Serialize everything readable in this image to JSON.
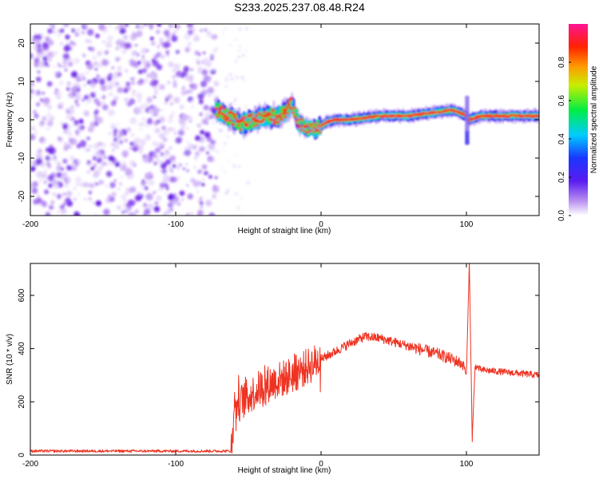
{
  "title": "S233.2025.237.08.48.R24",
  "colors": {
    "snr_line": "#ee3322",
    "background": "#ffffff",
    "noise_purple": "#7a2cf0"
  },
  "chart_data": [
    {
      "type": "heatmap",
      "name": "spectrogram",
      "xlabel": "Height of straight line (km)",
      "ylabel": "Frequency (Hz)",
      "xlim": [
        -200,
        150
      ],
      "ylim": [
        -25,
        25
      ],
      "xticks": [
        -200,
        -100,
        0,
        100
      ],
      "yticks": [
        -20,
        -10,
        0,
        10,
        20
      ],
      "noise_region_x": [
        -200,
        -72
      ],
      "signal_trace": {
        "x": [
          -72,
          -65,
          -55,
          -45,
          -35,
          -30,
          -25,
          -20,
          -15,
          -10,
          -5,
          0,
          5,
          10,
          20,
          30,
          40,
          50,
          60,
          70,
          80,
          90,
          95,
          100,
          102,
          110,
          120,
          130,
          140,
          150
        ],
        "freq": [
          2.5,
          1,
          -1,
          0,
          1,
          0.5,
          2,
          4,
          -1,
          -2,
          -2.5,
          -1.5,
          -0.5,
          0,
          0,
          0.5,
          1,
          1,
          1,
          1.5,
          2,
          2.5,
          2,
          1,
          0,
          1,
          1,
          1,
          1,
          1
        ]
      },
      "colorbar": {
        "label": "Normalized spectral amplitude",
        "range": [
          0,
          1
        ],
        "ticks": [
          0.0,
          0.2,
          0.4,
          0.6,
          0.8
        ],
        "tick_labels": [
          "0.0",
          "0.2",
          "0.4",
          "0.6",
          "0.8"
        ]
      }
    },
    {
      "type": "line",
      "name": "snr",
      "xlabel": "Height of straight line (km)",
      "ylabel": "SNR (10 * v/v)",
      "xlim": [
        -200,
        150
      ],
      "ylim": [
        0,
        720
      ],
      "xticks": [
        -200,
        -100,
        0,
        100
      ],
      "yticks": [
        0,
        200,
        400,
        600
      ],
      "series": [
        {
          "name": "SNR",
          "x": [
            -200,
            -150,
            -100,
            -62,
            -60,
            -50,
            -40,
            -30,
            -20,
            -10,
            0,
            10,
            20,
            30,
            40,
            50,
            60,
            70,
            80,
            90,
            98,
            100,
            102,
            104,
            106,
            110,
            120,
            130,
            140,
            150
          ],
          "values": [
            15,
            15,
            15,
            15,
            180,
            220,
            260,
            280,
            300,
            330,
            360,
            390,
            420,
            445,
            440,
            425,
            410,
            395,
            380,
            360,
            340,
            300,
            720,
            60,
            335,
            320,
            315,
            310,
            305,
            300
          ]
        }
      ]
    }
  ]
}
